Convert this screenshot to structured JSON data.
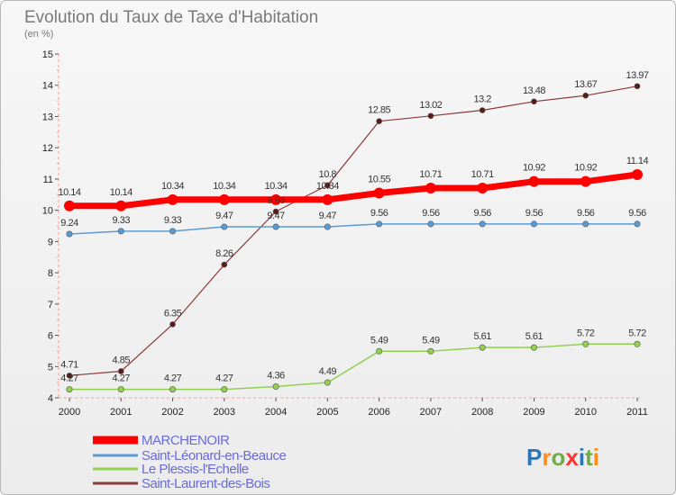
{
  "chart_data": {
    "type": "line",
    "title": "Evolution du Taux de Taxe d'Habitation",
    "subtitle": "(en %)",
    "x": [
      "2000",
      "2001",
      "2002",
      "2003",
      "2004",
      "2005",
      "2006",
      "2007",
      "2008",
      "2009",
      "2010",
      "2011"
    ],
    "ylim": [
      4,
      15
    ],
    "yticks": [
      4,
      5,
      6,
      7,
      8,
      9,
      10,
      11,
      12,
      13,
      14,
      15
    ],
    "grid": false,
    "legend_position": "bottom-left",
    "series": [
      {
        "name": "MARCHENOIR",
        "color": "#ff0000",
        "values": [
          10.14,
          10.14,
          10.34,
          10.34,
          10.34,
          10.34,
          10.55,
          10.71,
          10.71,
          10.92,
          10.92,
          11.14
        ],
        "labels": [
          "10.14",
          "10.14",
          "10.34",
          "10.34",
          "10.34",
          "10.34",
          "10.55",
          "10.71",
          "10.71",
          "10.92",
          "10.92",
          "11.14"
        ]
      },
      {
        "name": "Saint-Léonard-en-Beauce",
        "color": "#5b9bd5",
        "values": [
          9.24,
          9.33,
          9.33,
          9.47,
          9.47,
          9.47,
          9.56,
          9.56,
          9.56,
          9.56,
          9.56,
          9.56
        ],
        "labels": [
          "9.24",
          "9.33",
          "9.33",
          "9.47",
          "9.47",
          "9.47",
          "9.56",
          "9.56",
          "9.56",
          "9.56",
          "9.56",
          "9.56"
        ]
      },
      {
        "name": "Le Plessis-l'Echelle",
        "color": "#92d050",
        "values": [
          4.27,
          4.27,
          4.27,
          4.27,
          4.36,
          4.49,
          5.49,
          5.49,
          5.61,
          5.61,
          5.72,
          5.72
        ],
        "labels": [
          "4.27",
          "4.27",
          "4.27",
          "4.27",
          "4.36",
          "4.49",
          "5.49",
          "5.49",
          "5.61",
          "5.61",
          "5.72",
          "5.72"
        ]
      },
      {
        "name": "Saint-Laurent-des-Bois",
        "color": "#8b3a3a",
        "values": [
          4.71,
          4.85,
          6.35,
          8.26,
          9.96,
          10.8,
          12.85,
          13.02,
          13.2,
          13.48,
          13.67,
          13.97
        ],
        "labels": [
          "4.71",
          "4.85",
          "6.35",
          "8.26",
          "9.96",
          "10.8",
          "12.85",
          "13.02",
          "13.2",
          "13.48",
          "13.67",
          "13.97"
        ]
      }
    ]
  },
  "logo": {
    "letters": [
      "P",
      "r",
      "o",
      "x",
      "i",
      "t",
      "i"
    ],
    "colors": [
      "#2e75b6",
      "#ff8c1a",
      "#70ad47",
      "#ff3333",
      "#2e75b6",
      "#70ad47",
      "#ff8c1a"
    ]
  }
}
